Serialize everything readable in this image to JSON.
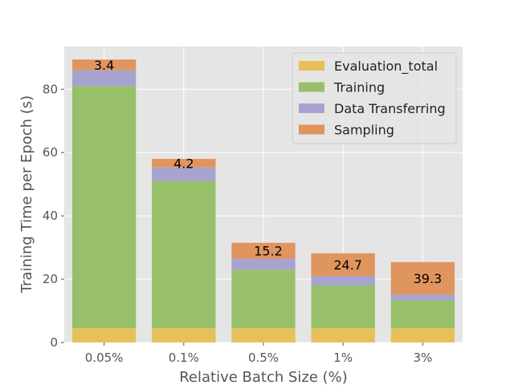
{
  "chart_data": {
    "type": "bar",
    "stacked": true,
    "categories": [
      "0.05%",
      "0.1%",
      "0.5%",
      "1%",
      "3%"
    ],
    "series": [
      {
        "name": "Evaluation_total",
        "color": "#e6c15a",
        "values": [
          4.5,
          4.5,
          4.5,
          4.5,
          4.5
        ]
      },
      {
        "name": "Training",
        "color": "#98c06a",
        "values": [
          76.5,
          46.5,
          18.5,
          13.5,
          8.8
        ]
      },
      {
        "name": "Data Transferring",
        "color": "#a6a4cf",
        "values": [
          5.0,
          4.3,
          3.5,
          3.0,
          1.8
        ]
      },
      {
        "name": "Sampling",
        "color": "#e0955e",
        "values": [
          3.4,
          2.7,
          5.0,
          7.2,
          10.3
        ]
      }
    ],
    "data_labels": [
      "3.4",
      "4.2",
      "15.2",
      "24.7",
      "39.3"
    ],
    "title": "",
    "xlabel": "Relative Batch Size (%)",
    "ylabel": "Training Time per Epoch (s)",
    "ylim": [
      0,
      93.5
    ],
    "yticks": [
      "0",
      "20",
      "40",
      "60",
      "80"
    ],
    "grid": true,
    "legend_position": "top-right",
    "plot_background": "#e5e5e5",
    "grid_color": "#ffffff"
  }
}
